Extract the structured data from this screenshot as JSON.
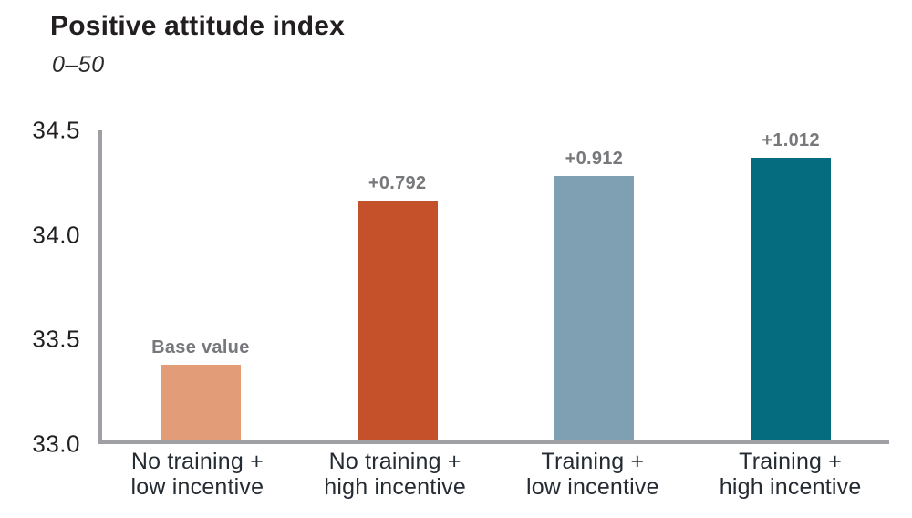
{
  "header": {
    "title": "Positive attitude index",
    "subtitle": "0–50"
  },
  "chart_data": {
    "type": "bar",
    "title": "Positive attitude index",
    "scale_note": "0–50",
    "xlabel": "",
    "ylabel": "",
    "ylim": [
      33.0,
      34.5
    ],
    "grid": false,
    "legend": "none",
    "yticks_top_to_bottom": [
      "34.5",
      "34.0",
      "33.5",
      "33.0"
    ],
    "base_value": 33.368,
    "bars": [
      {
        "category_line1": "No training +",
        "category_line2": "low incentive",
        "value": 33.368,
        "annotation": "Base value",
        "color": "#e29d78"
      },
      {
        "category_line1": "No training +",
        "category_line2": "high incentive",
        "value": 34.16,
        "annotation": "+0.792",
        "color": "#c5512b"
      },
      {
        "category_line1": "Training +",
        "category_line2": "low incentive",
        "value": 34.28,
        "annotation": "+0.912",
        "color": "#7fa0b2"
      },
      {
        "category_line1": "Training +",
        "category_line2": "high incentive",
        "value": 34.38,
        "annotation": "+1.012",
        "color": "#056b7e"
      }
    ],
    "colors": {
      "axis_line": "#9ea0a3",
      "annotation_text": "#77787b",
      "tick_text": "#231f20",
      "category_text": "#252b33"
    }
  }
}
